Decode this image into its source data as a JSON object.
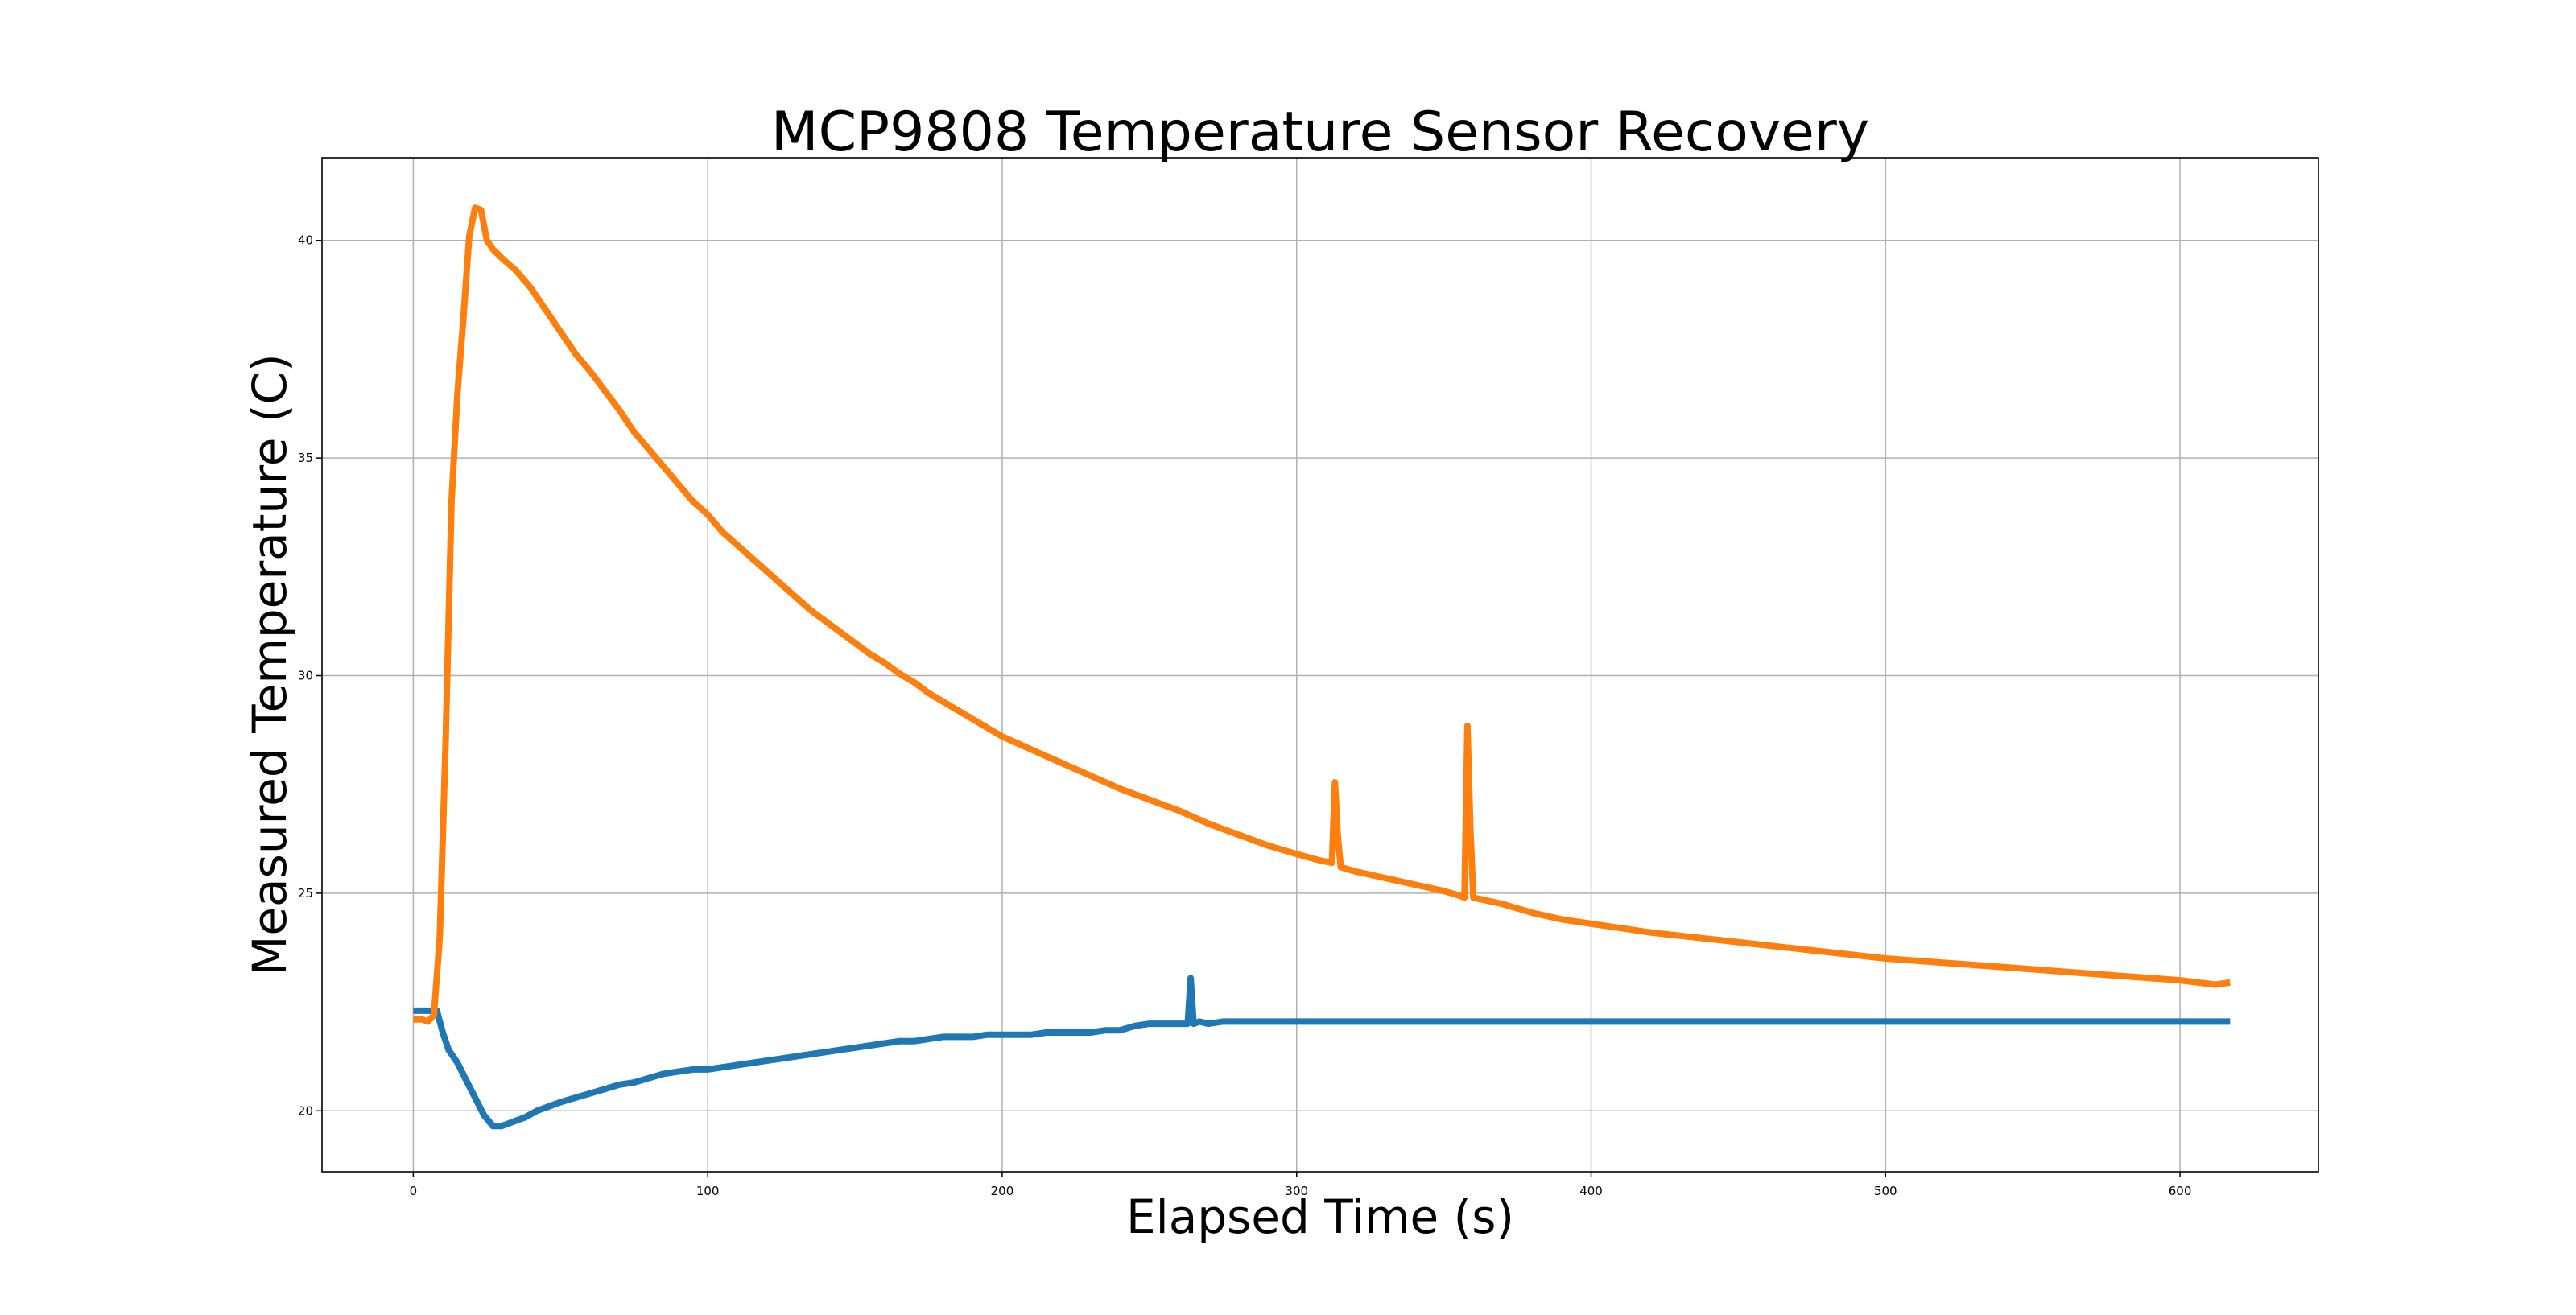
{
  "chart_data": {
    "type": "line",
    "title": "MCP9808 Temperature Sensor Recovery",
    "xlabel": "Elapsed Time (s)",
    "ylabel": "Measured Temperature (C)",
    "xlim": [
      -31,
      647
    ],
    "ylim": [
      18.6,
      41.9
    ],
    "xticks": [
      0,
      100,
      200,
      300,
      400,
      500,
      600
    ],
    "yticks": [
      20,
      25,
      30,
      35,
      40
    ],
    "grid": true,
    "legend": "none",
    "series": [
      {
        "color": "#1f77b4",
        "x": [
          0,
          3,
          6,
          8,
          10,
          12,
          15,
          18,
          21,
          24,
          27,
          30,
          34,
          38,
          42,
          46,
          50,
          55,
          60,
          65,
          70,
          75,
          80,
          85,
          90,
          95,
          100,
          105,
          110,
          115,
          120,
          125,
          130,
          135,
          140,
          145,
          150,
          155,
          160,
          165,
          170,
          175,
          180,
          185,
          190,
          195,
          200,
          205,
          210,
          215,
          220,
          225,
          230,
          235,
          240,
          245,
          250,
          255,
          260,
          263,
          264,
          265,
          267,
          270,
          275,
          280,
          290,
          300,
          350,
          400,
          450,
          500,
          550,
          600,
          617
        ],
        "values": [
          22.3,
          22.3,
          22.3,
          22.3,
          21.8,
          21.4,
          21.1,
          20.7,
          20.3,
          19.9,
          19.65,
          19.65,
          19.75,
          19.85,
          20.0,
          20.1,
          20.2,
          20.3,
          20.4,
          20.5,
          20.6,
          20.65,
          20.75,
          20.85,
          20.9,
          20.95,
          20.95,
          21.0,
          21.05,
          21.1,
          21.15,
          21.2,
          21.25,
          21.3,
          21.35,
          21.4,
          21.45,
          21.5,
          21.55,
          21.6,
          21.6,
          21.65,
          21.7,
          21.7,
          21.7,
          21.75,
          21.75,
          21.75,
          21.75,
          21.8,
          21.8,
          21.8,
          21.8,
          21.85,
          21.85,
          21.95,
          22.0,
          22.0,
          22.0,
          22.0,
          23.05,
          22.0,
          22.05,
          22.0,
          22.05,
          22.05,
          22.05,
          22.05,
          22.05,
          22.05,
          22.05,
          22.05,
          22.05,
          22.05,
          22.05
        ]
      },
      {
        "color": "#ff7f0e",
        "x": [
          0,
          3,
          5,
          7,
          9,
          11,
          13,
          15,
          17,
          19,
          21,
          23,
          25,
          27,
          30,
          35,
          40,
          45,
          50,
          55,
          60,
          65,
          70,
          75,
          80,
          85,
          90,
          95,
          100,
          105,
          110,
          115,
          120,
          125,
          130,
          135,
          140,
          145,
          150,
          155,
          160,
          165,
          170,
          175,
          180,
          185,
          190,
          195,
          200,
          210,
          220,
          230,
          240,
          250,
          260,
          270,
          280,
          290,
          300,
          308,
          312,
          313,
          314,
          315,
          320,
          330,
          340,
          350,
          355,
          357,
          358,
          359,
          360,
          370,
          380,
          390,
          400,
          420,
          440,
          460,
          480,
          500,
          520,
          540,
          560,
          580,
          600,
          612,
          617
        ],
        "values": [
          22.1,
          22.1,
          22.05,
          22.2,
          24.0,
          28.5,
          34.0,
          36.5,
          38.2,
          40.1,
          40.75,
          40.7,
          40.0,
          39.8,
          39.6,
          39.3,
          38.9,
          38.4,
          37.9,
          37.4,
          37.0,
          36.55,
          36.1,
          35.6,
          35.2,
          34.8,
          34.4,
          34.0,
          33.7,
          33.3,
          33.0,
          32.7,
          32.4,
          32.1,
          31.8,
          31.5,
          31.25,
          31.0,
          30.75,
          30.5,
          30.3,
          30.05,
          29.85,
          29.6,
          29.4,
          29.2,
          29.0,
          28.8,
          28.6,
          28.3,
          28.0,
          27.7,
          27.4,
          27.15,
          26.9,
          26.6,
          26.35,
          26.1,
          25.9,
          25.75,
          25.7,
          27.55,
          26.3,
          25.6,
          25.5,
          25.35,
          25.2,
          25.05,
          24.95,
          24.9,
          28.85,
          26.5,
          24.9,
          24.75,
          24.55,
          24.4,
          24.3,
          24.1,
          23.95,
          23.8,
          23.65,
          23.5,
          23.4,
          23.3,
          23.2,
          23.1,
          23.0,
          22.9,
          22.95
        ]
      }
    ]
  }
}
